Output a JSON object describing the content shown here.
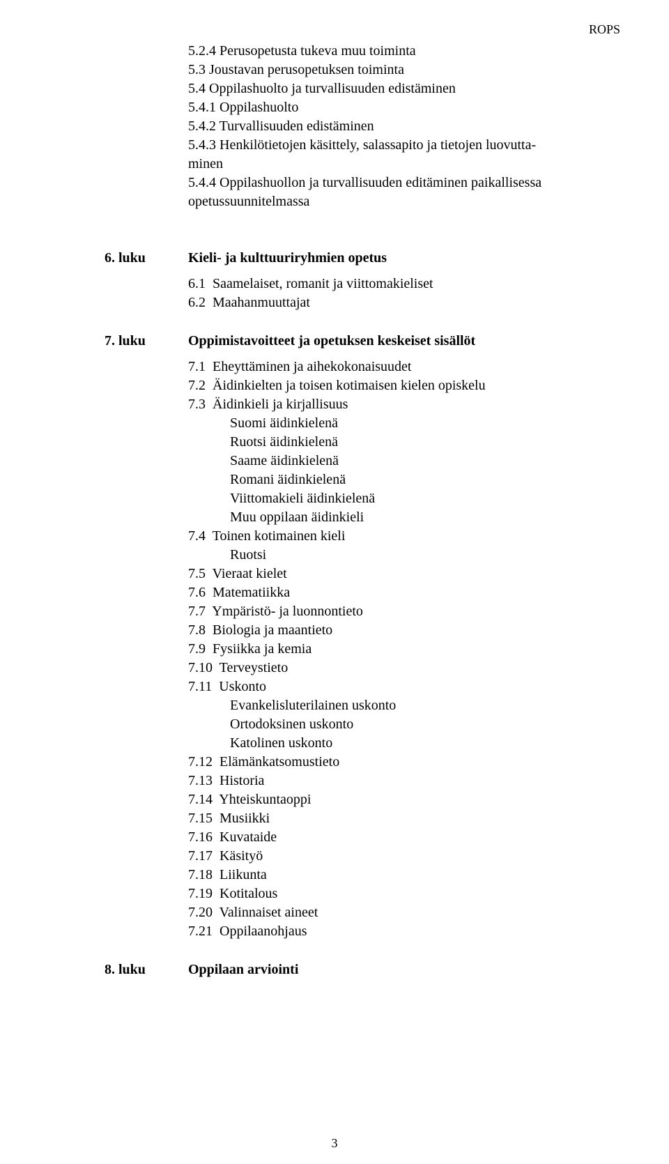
{
  "header": {
    "right": "ROPS"
  },
  "block5": {
    "lines": [
      "5.2.4 Perusopetusta tukeva muu toiminta",
      "5.3 Joustavan perusopetuksen toiminta",
      "5.4 Oppilashuolto ja turvallisuuden edistäminen",
      "5.4.1 Oppilashuolto",
      "5.4.2 Turvallisuuden edistäminen",
      "5.4.3 Henkilötietojen käsittely, salassapito ja tietojen luovutta-",
      "minen",
      "5.4.4 Oppilashuollon ja turvallisuuden editäminen paikallisessa",
      "opetussuunnitelmassa"
    ]
  },
  "ch6": {
    "label": "6. luku",
    "title": "Kieli- ja kulttuuriryhmien opetus",
    "items": [
      "6.1  Saamelaiset, romanit ja viittomakieliset",
      "6.2  Maahanmuuttajat"
    ]
  },
  "ch7": {
    "label": "7. luku",
    "title": "Oppimistavoitteet ja opetuksen keskeiset sisällöt",
    "items": [
      "7.1  Eheyttäminen ja aihekokonaisuudet",
      "7.2  Äidinkielten ja toisen kotimaisen kielen opiskelu",
      "7.3  Äidinkieli ja kirjallisuus"
    ],
    "sub73": [
      "Suomi äidinkielenä",
      "Ruotsi äidinkielenä",
      "Saame äidinkielenä",
      "Romani äidinkielenä",
      "Viittomakieli äidinkielenä",
      "Muu oppilaan äidinkieli"
    ],
    "i74": "7.4  Toinen kotimainen kieli",
    "sub74": [
      "Ruotsi"
    ],
    "rest": [
      "7.5  Vieraat kielet",
      "7.6  Matematiikka",
      "7.7  Ympäristö- ja luonnontieto",
      "7.8  Biologia ja maantieto",
      "7.9  Fysiikka ja kemia",
      "7.10  Terveystieto",
      "7.11  Uskonto"
    ],
    "sub711": [
      "Evankelisluterilainen uskonto",
      "Ortodoksinen uskonto",
      "Katolinen uskonto"
    ],
    "rest2": [
      "7.12  Elämänkatsomustieto",
      "7.13  Historia",
      "7.14  Yhteiskuntaoppi",
      "7.15  Musiikki",
      "7.16  Kuvataide",
      "7.17  Käsityö",
      "7.18  Liikunta",
      "7.19  Kotitalous",
      "7.20  Valinnaiset aineet",
      "7.21  Oppilaanohjaus"
    ]
  },
  "ch8": {
    "label": "8. luku",
    "title": "Oppilaan arviointi"
  },
  "footer": {
    "page": "3"
  }
}
